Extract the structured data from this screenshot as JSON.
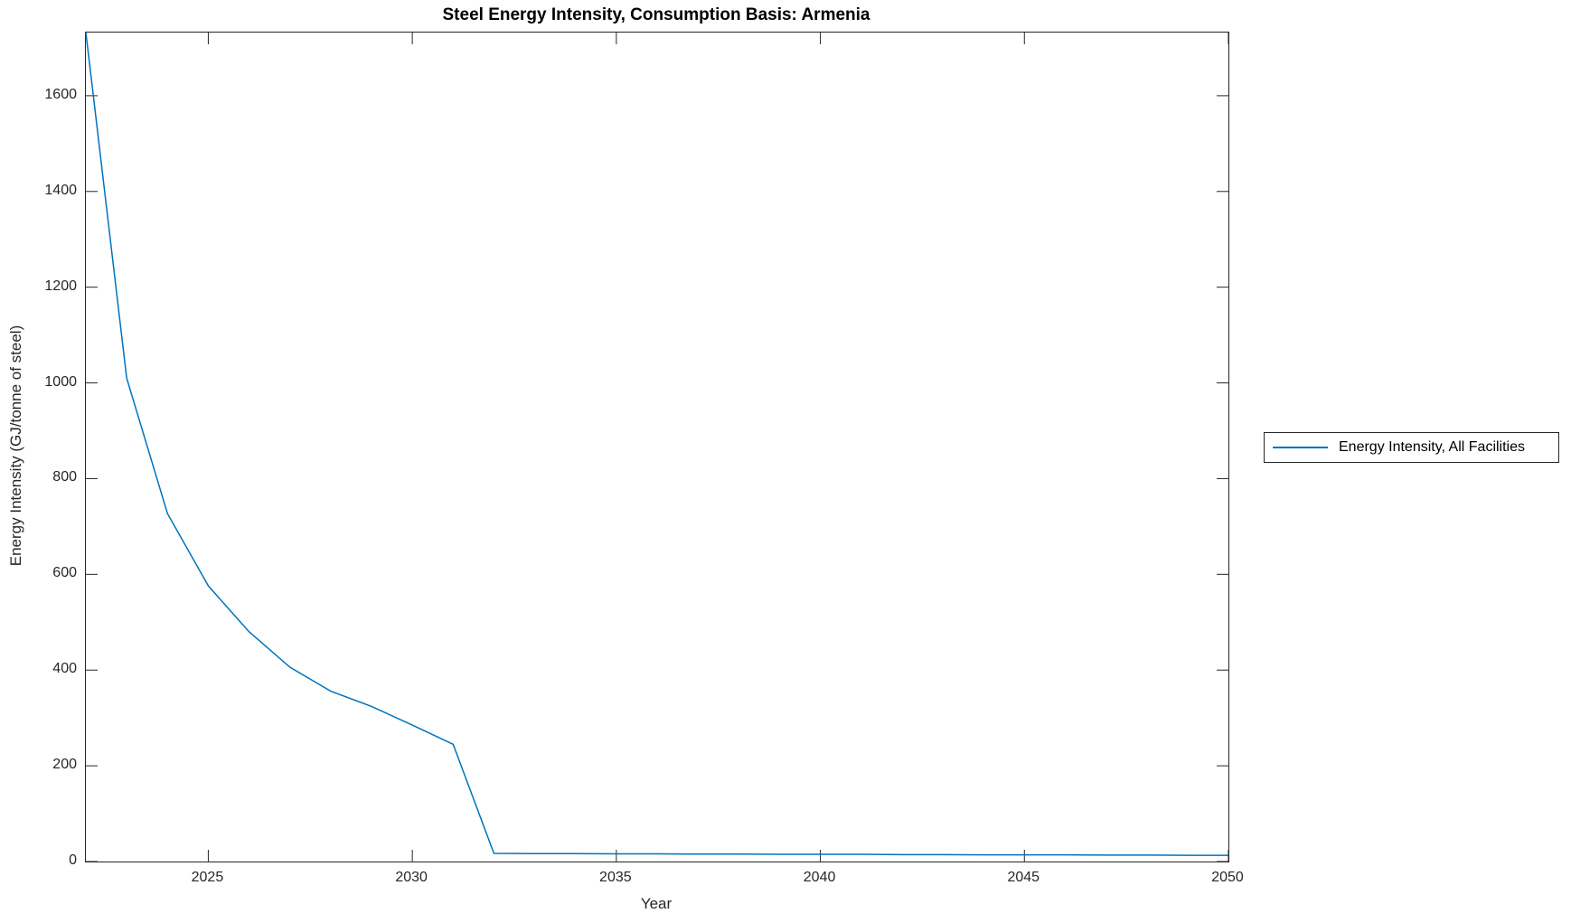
{
  "chart_data": {
    "type": "line",
    "title": "Steel Energy Intensity, Consumption Basis: Armenia",
    "xlabel": "Year",
    "ylabel": "Energy Intensity (GJ/tonne of steel)",
    "xlim": [
      2022,
      2050
    ],
    "ylim": [
      0,
      1732
    ],
    "x_ticks": [
      2025,
      2030,
      2035,
      2040,
      2045,
      2050
    ],
    "y_ticks": [
      0,
      200,
      400,
      600,
      800,
      1000,
      1200,
      1400,
      1600
    ],
    "grid": false,
    "box": true,
    "legend": {
      "position": "eastoutside",
      "entries": [
        {
          "label": "Energy Intensity, All Facilities",
          "color": "#0072BD"
        }
      ]
    },
    "series": [
      {
        "name": "Energy Intensity, All Facilities",
        "color": "#0072BD",
        "x": [
          2022,
          2023,
          2024,
          2025,
          2026,
          2027,
          2028,
          2029,
          2030,
          2031,
          2032,
          2033,
          2034,
          2035,
          2036,
          2037,
          2038,
          2039,
          2040,
          2041,
          2042,
          2043,
          2044,
          2045,
          2046,
          2047,
          2048,
          2049,
          2050
        ],
        "values": [
          1732,
          1010,
          727,
          576,
          480,
          406,
          356,
          324,
          285,
          245,
          17,
          16.5,
          16.5,
          16,
          16,
          15.5,
          15.5,
          15,
          15,
          15,
          14.5,
          14.5,
          14,
          14,
          14,
          13.5,
          13.5,
          13,
          13
        ]
      }
    ]
  },
  "colors": {
    "line": "#0072BD",
    "axis": "#262626",
    "background": "#ffffff"
  }
}
